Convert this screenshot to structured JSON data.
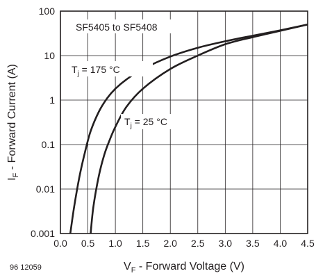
{
  "chart_data": {
    "type": "line",
    "title": "SF5405 to SF5408",
    "xlabel": {
      "main": "V",
      "sub": "F",
      "rest": " - Forward Voltage (V)"
    },
    "ylabel": {
      "main": "I",
      "sub": "F",
      "rest": " - Forward Current (A)"
    },
    "figure_id": "96 12059",
    "xlim": [
      0.0,
      4.5
    ],
    "ylim": [
      0.001,
      100
    ],
    "yscale": "log",
    "grid": true,
    "x_ticks": [
      0.0,
      0.5,
      1.0,
      1.5,
      2.0,
      2.5,
      3.0,
      3.5,
      4.0,
      4.5
    ],
    "x_tick_labels": [
      "0.0",
      "0.5",
      "1.0",
      "1.5",
      "2.0",
      "2.5",
      "3.0",
      "3.5",
      "4.0",
      "4.5"
    ],
    "y_ticks": [
      0.001,
      0.01,
      0.1,
      1,
      10,
      100
    ],
    "y_tick_labels": [
      "0.001",
      "0.01",
      "0.1",
      "1",
      "10",
      "100"
    ],
    "series": [
      {
        "label": {
          "main": "T",
          "sub": "j",
          "rest": " = 175 °C"
        },
        "x": [
          0.18,
          0.25,
          0.35,
          0.45,
          0.55,
          0.7,
          0.85,
          1.0,
          1.2,
          1.5,
          2.0,
          2.5,
          3.0,
          3.5,
          4.0,
          4.5
        ],
        "y": [
          0.001,
          0.004,
          0.02,
          0.07,
          0.2,
          0.55,
          1.1,
          1.8,
          2.9,
          5.0,
          9.5,
          15,
          21,
          28,
          37,
          50
        ]
      },
      {
        "label": {
          "main": "T",
          "sub": "j",
          "rest": " = 25 °C"
        },
        "x": [
          0.55,
          0.6,
          0.7,
          0.8,
          0.9,
          1.0,
          1.2,
          1.5,
          2.0,
          2.5,
          3.0,
          3.5,
          4.0,
          4.5
        ],
        "y": [
          0.001,
          0.004,
          0.02,
          0.06,
          0.13,
          0.25,
          0.7,
          1.8,
          5.0,
          10,
          18,
          26,
          36,
          50
        ]
      }
    ]
  }
}
